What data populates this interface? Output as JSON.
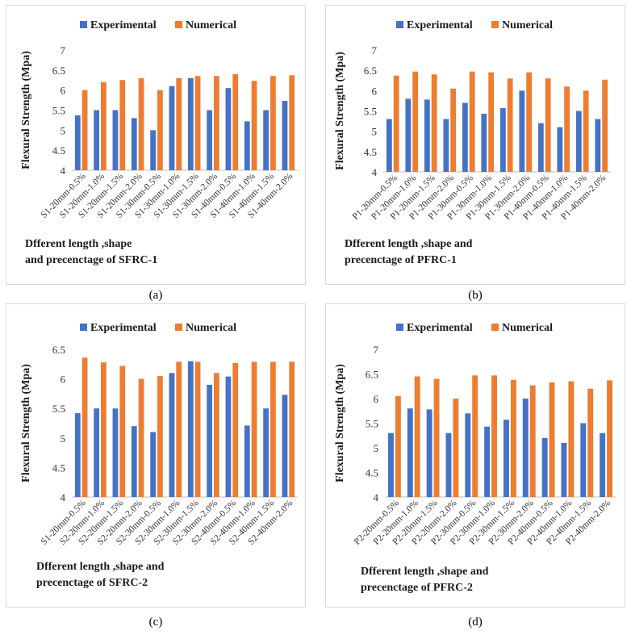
{
  "colors": {
    "experimental": "#4472C4",
    "numerical": "#ED7D31",
    "axis": "#bfbfbf",
    "border": "#d9d9d9"
  },
  "chart_data": [
    {
      "type": "bar",
      "panel_label": "(a)",
      "categories": [
        "S1-20mm-0.5%",
        "S1-20mm-1.0%",
        "S1-20mm-1.5%",
        "S1-20mm-2.0%",
        "S1-30mm-0.5%",
        "S1-30mm-1.0%",
        "S1-30mm-1.5%",
        "S1-30mm-2.0%",
        "S1-40mm-0.5%",
        "S1-40mm-1.0%",
        "S1-40mm-1.5%",
        "S1-40mm-2.0%"
      ],
      "series": [
        {
          "name": "Experimental",
          "values": [
            5.37,
            5.5,
            5.5,
            5.3,
            5.0,
            6.1,
            6.3,
            5.5,
            6.05,
            5.22,
            5.5,
            5.73
          ]
        },
        {
          "name": "Numerical",
          "values": [
            6.0,
            6.2,
            6.25,
            6.3,
            6.0,
            6.3,
            6.35,
            6.35,
            6.4,
            6.23,
            6.35,
            6.37
          ]
        }
      ],
      "ylabel": "Flexural  Strength (Mpa)",
      "xlabel_lines": [
        "Dfferent length ,shape",
        "and precenctage of SFRC-1"
      ],
      "ylim": [
        4,
        7
      ],
      "yticks": [
        "4",
        "4.5",
        "5",
        "5.5",
        "6",
        "6.5",
        "7"
      ]
    },
    {
      "type": "bar",
      "panel_label": "(b)",
      "categories": [
        "P1-20mm-0.5%",
        "P1-20mm-1.0%",
        "P1-20mm-1.5%",
        "P1-20mm-2.0%",
        "P1-30mm-0.5%",
        "P1-30mm-1.0%",
        "P1-30mm-1.5%",
        "P1-30mm-2.0%",
        "P1-40mm-0.5%",
        "P1-40mm-1.0%",
        "P1-40mm-1.5%",
        "P1-40mm-2.0%"
      ],
      "series": [
        {
          "name": "Experimental",
          "values": [
            5.3,
            5.8,
            5.78,
            5.3,
            5.7,
            5.43,
            5.57,
            6.0,
            5.2,
            5.1,
            5.5,
            5.3
          ]
        },
        {
          "name": "Numerical",
          "values": [
            6.37,
            6.47,
            6.4,
            6.05,
            6.47,
            6.45,
            6.3,
            6.45,
            6.3,
            6.1,
            6.0,
            6.27
          ]
        }
      ],
      "ylabel": "Flexural  Strength (Mpa)",
      "xlabel_lines": [
        "Dfferent length ,shape and",
        "precenctage of PFRC-1"
      ],
      "ylim": [
        4,
        7
      ],
      "yticks": [
        "4",
        "4.5",
        "5",
        "5.5",
        "6",
        "6.5",
        "7"
      ]
    },
    {
      "type": "bar",
      "panel_label": "(c)",
      "categories": [
        "S1-20mm-0.5%",
        "S2-20mm-1.0%",
        "S2-20mm-1.5%",
        "S2-20mm-2.0%",
        "S2-30mm-0.5%",
        "S2-30mm-1.0%",
        "S2-30mm-1.5%",
        "S2-30mm-2.0%",
        "S2-40mm-0.5%",
        "S2-40mm-1.0%",
        "S2-40mm-1.5%",
        "S2-40mm-2.0%"
      ],
      "series": [
        {
          "name": "Experimental",
          "values": [
            5.42,
            5.5,
            5.5,
            5.2,
            5.1,
            6.1,
            6.3,
            5.9,
            6.04,
            5.21,
            5.5,
            5.73
          ]
        },
        {
          "name": "Numerical",
          "values": [
            6.36,
            6.28,
            6.22,
            6.0,
            6.05,
            6.29,
            6.29,
            6.1,
            6.27,
            6.29,
            6.29,
            6.29
          ]
        }
      ],
      "ylabel": "Flexural  Strength  (Mpa)",
      "xlabel_lines": [
        "Dfferent length ,shape and",
        "precenctage of SFRC-2"
      ],
      "ylim": [
        4,
        6.5
      ],
      "yticks": [
        "4",
        "4.5",
        "5",
        "5.5",
        "6",
        "6.5"
      ]
    },
    {
      "type": "bar",
      "panel_label": "(d)",
      "categories": [
        "P2-20mm-0.5%",
        "P2-20mm-1.0%",
        "P2-20mm-1.5%",
        "P2-20mm-2.0%",
        "P2-30mm-0.5%",
        "P2-30mm-1.0%",
        "P2-30mm-1.5%",
        "P2-30mm-2.0%",
        "P2-40mm-0.5%",
        "P2-40mm-1.0%",
        "P2-40mm-1.5%",
        "P2-40mm-2.0%"
      ],
      "series": [
        {
          "name": "Experimental",
          "values": [
            5.3,
            5.8,
            5.78,
            5.3,
            5.7,
            5.43,
            5.57,
            6.0,
            5.2,
            5.1,
            5.5,
            5.3
          ]
        },
        {
          "name": "Numerical",
          "values": [
            6.05,
            6.45,
            6.4,
            6.0,
            6.47,
            6.47,
            6.38,
            6.27,
            6.33,
            6.35,
            6.2,
            6.37
          ]
        }
      ],
      "ylabel": "Flexural  Strength (Mpa)",
      "xlabel_lines": [
        "Dfferent length ,shape and",
        "precenctage of PFRC-2"
      ],
      "ylim": [
        4,
        7
      ],
      "yticks": [
        "4",
        "4.5",
        "5",
        "5.5",
        "6",
        "6.5",
        "7"
      ]
    }
  ]
}
